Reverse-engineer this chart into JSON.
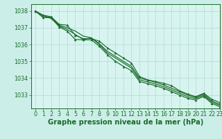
{
  "title": "Graphe pression niveau de la mer (hPa)",
  "background_color": "#cceee8",
  "plot_bg_color": "#d8f4f0",
  "grid_color": "#b8ddd8",
  "line_color": "#1a6b2a",
  "xlim": [
    -0.5,
    23
  ],
  "ylim": [
    1032.2,
    1038.4
  ],
  "yticks": [
    1033,
    1034,
    1035,
    1036,
    1037,
    1038
  ],
  "xticks": [
    0,
    1,
    2,
    3,
    4,
    5,
    6,
    7,
    8,
    9,
    10,
    11,
    12,
    13,
    14,
    15,
    16,
    17,
    18,
    19,
    20,
    21,
    22,
    23
  ],
  "series": [
    [
      1038.0,
      1037.75,
      1037.65,
      1037.2,
      1037.15,
      1036.55,
      1036.35,
      1036.35,
      1036.2,
      1035.8,
      1035.5,
      1035.2,
      1034.9,
      1034.1,
      1033.9,
      1033.8,
      1033.7,
      1033.55,
      1033.25,
      1033.05,
      1032.9,
      1033.1,
      1032.75,
      1032.55
    ],
    [
      1038.0,
      1037.7,
      1037.6,
      1037.15,
      1037.0,
      1036.8,
      1036.5,
      1036.4,
      1036.05,
      1035.6,
      1035.3,
      1035.0,
      1034.7,
      1034.0,
      1033.88,
      1033.75,
      1033.6,
      1033.4,
      1033.2,
      1033.0,
      1032.85,
      1033.05,
      1032.65,
      1032.45
    ],
    [
      1038.0,
      1037.7,
      1037.55,
      1037.1,
      1036.9,
      1036.6,
      1036.3,
      1036.4,
      1036.0,
      1035.5,
      1035.2,
      1034.9,
      1034.6,
      1033.9,
      1033.78,
      1033.65,
      1033.5,
      1033.3,
      1033.1,
      1032.9,
      1032.78,
      1032.98,
      1032.58,
      1032.38
    ],
    [
      1038.0,
      1037.6,
      1037.6,
      1037.05,
      1036.8,
      1036.3,
      1036.28,
      1036.28,
      1035.9,
      1035.4,
      1035.0,
      1034.7,
      1034.45,
      1033.8,
      1033.68,
      1033.55,
      1033.4,
      1033.2,
      1033.0,
      1032.8,
      1032.7,
      1032.92,
      1032.5,
      1032.3
    ]
  ],
  "marker_series": [
    0,
    3
  ],
  "tick_fontsize": 5.8,
  "title_fontsize": 7.2,
  "lw": 0.85,
  "markersize": 2.2
}
